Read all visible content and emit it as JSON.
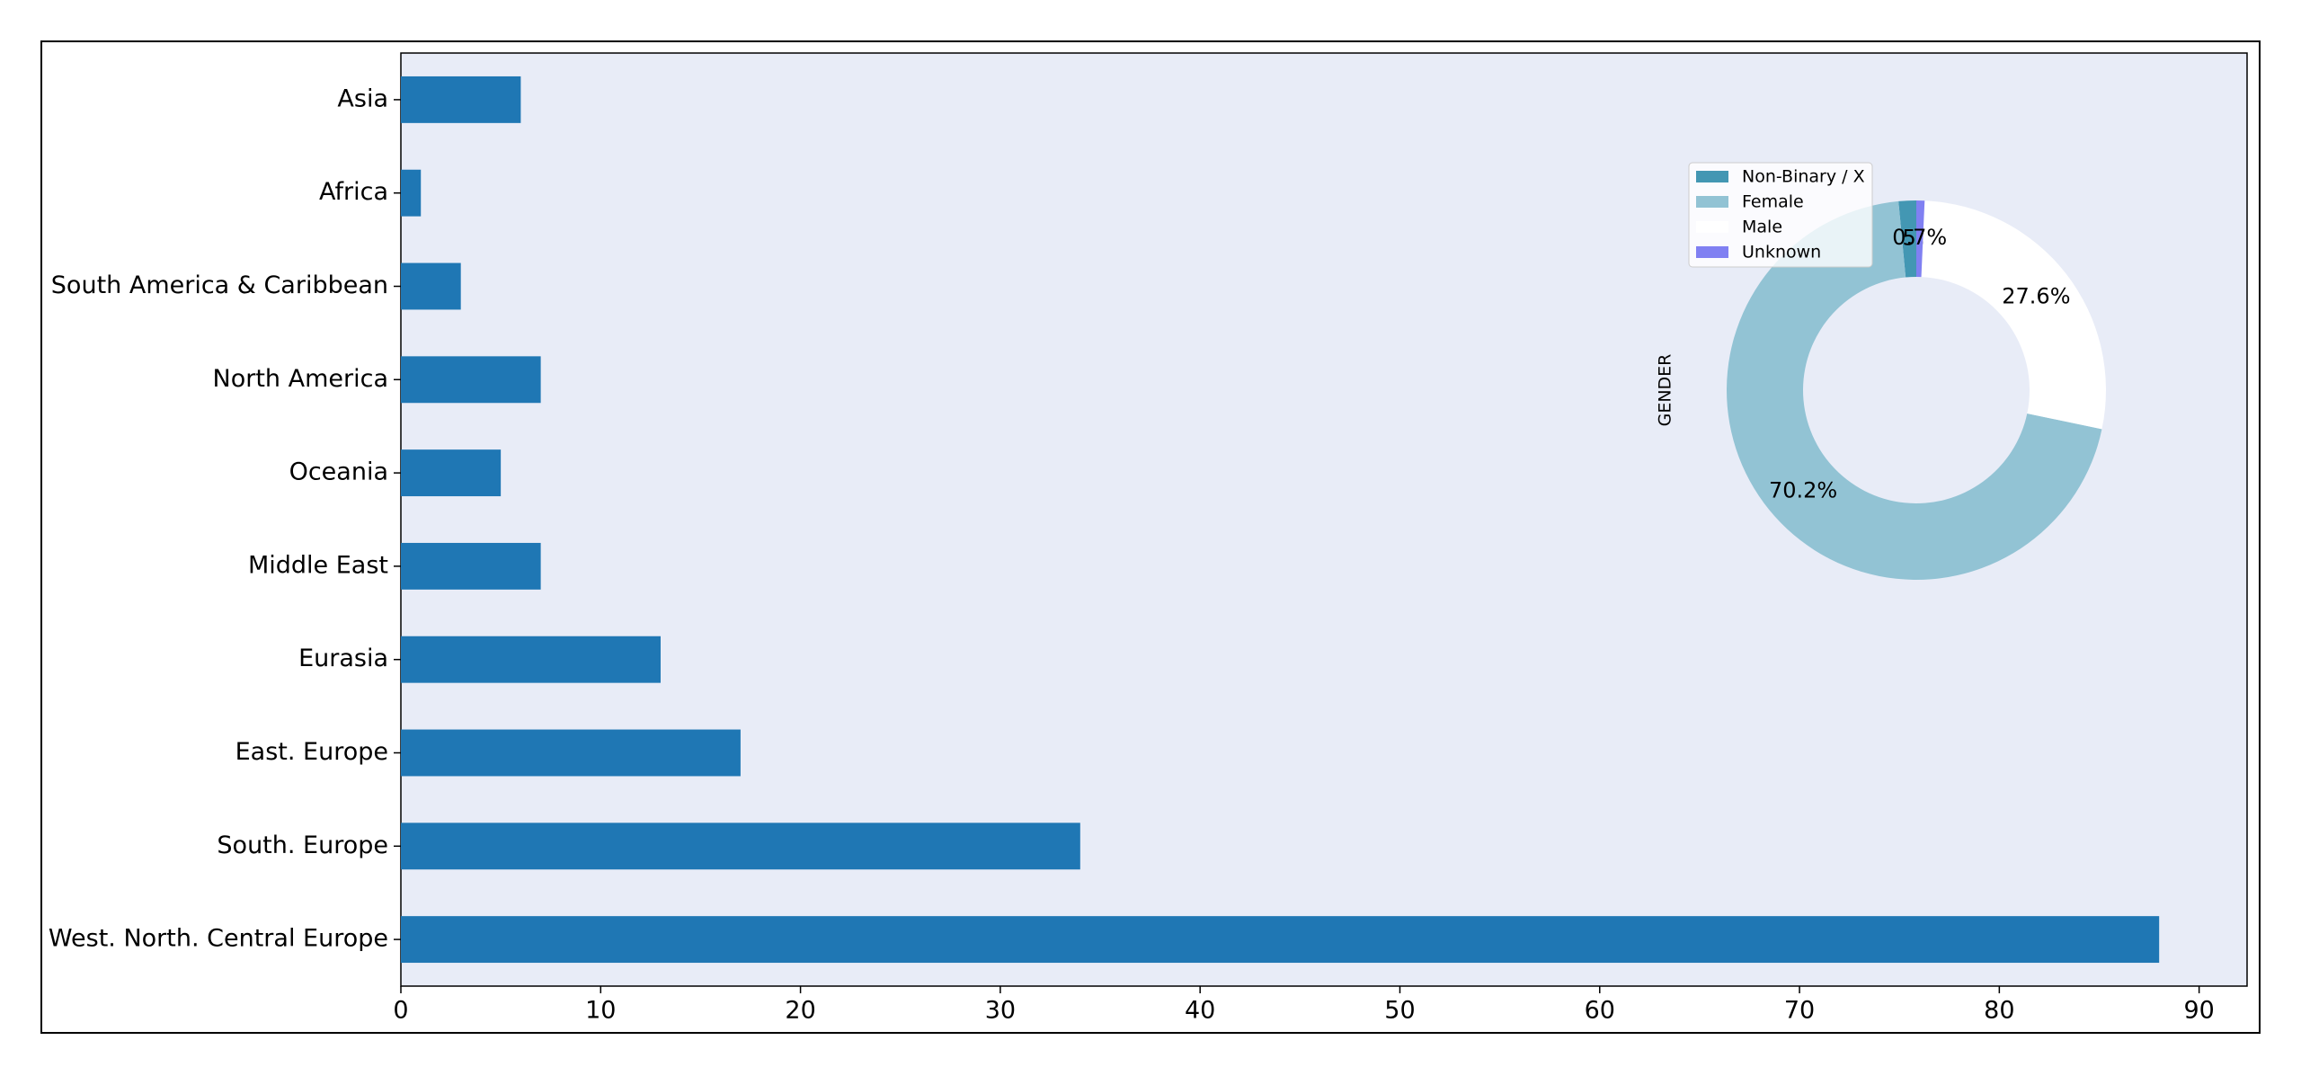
{
  "chart_data": [
    {
      "type": "barh",
      "categories": [
        "Asia",
        "Africa",
        "South America & Caribbean",
        "North America",
        "Oceania",
        "Middle East",
        "Eurasia",
        "East. Europe",
        "South. Europe",
        "West. North. Central Europe"
      ],
      "values": [
        6,
        1,
        3,
        7,
        5,
        7,
        13,
        17,
        34,
        88
      ],
      "color": "#1f77b4",
      "xlim": [
        0,
        92.4
      ],
      "xticks": [
        0,
        10,
        20,
        30,
        40,
        50,
        60,
        70,
        80,
        90
      ]
    },
    {
      "type": "pie",
      "ylabel": "GENDER",
      "categories": [
        "Non-Binary / X",
        "Female",
        "Male",
        "Unknown"
      ],
      "values": [
        1.5,
        70.2,
        27.6,
        0.7
      ],
      "value_labels": [
        "1.5%",
        "70.2%",
        "27.6%",
        "0.7%"
      ],
      "colors": [
        "#4397b3",
        "#92c3d4",
        "#ffffff",
        "#8080f2"
      ],
      "donut": true,
      "legend": "upper left"
    }
  ]
}
